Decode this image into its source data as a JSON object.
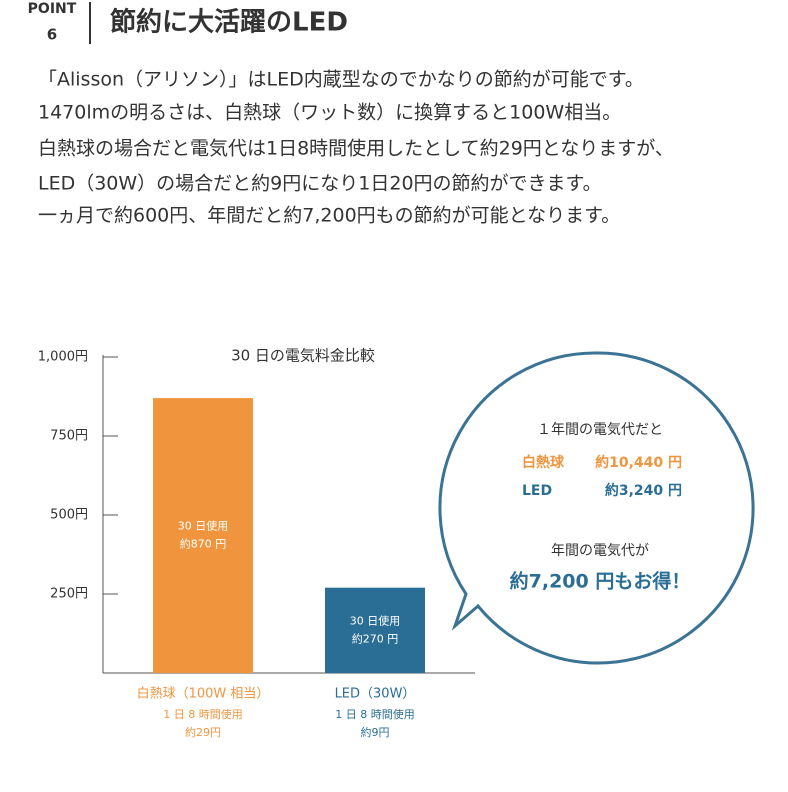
{
  "header": {
    "point": "POINT",
    "number": "6",
    "title": "節約に大活躍のLED"
  },
  "body": [
    "「Alisson（アリソン）」はLED内蔵型なのでかなりの節約が可能です。",
    "1470lmの明るさは、白熱球（ワット数）に換算すると100W相当。",
    "白熱球の場合だと電気代は1日8時間使用したとして約29円となりますが、",
    "LED（30W）の場合だと約9円になり1日20円の節約ができます。",
    "一ヵ月で約600円、年間だと約7,200円もの節約が可能となります。"
  ],
  "chart_data": {
    "type": "bar",
    "title": "30 日の電気料金比較",
    "categories": [
      "白熱球（100W 相当）",
      "LED（30W）"
    ],
    "category_notes": [
      [
        "1 日 8 時間使用",
        "約29円"
      ],
      [
        "1 日 8 時間使用",
        "約9円"
      ]
    ],
    "values": [
      870,
      270
    ],
    "value_labels": [
      "約870 円",
      "約270 円"
    ],
    "bar_notes": [
      "30 日使用",
      "30 日使用"
    ],
    "colors": [
      "#f0953e",
      "#2a6e96"
    ],
    "ylim": [
      0,
      1000
    ],
    "yticks": [
      {
        "value": 250,
        "label": "250円"
      },
      {
        "value": 500,
        "label": "500円"
      },
      {
        "value": 750,
        "label": "750円"
      },
      {
        "value": 1000,
        "label": "1,000円"
      }
    ]
  },
  "callout": {
    "heading": "１年間の電気代だと",
    "rows": [
      [
        "白熱球",
        "約10,440 円"
      ],
      [
        "LED",
        "約3,240 円"
      ]
    ],
    "subheading": "年間の電気代が",
    "highlight": "約7,200 円もお得！"
  }
}
